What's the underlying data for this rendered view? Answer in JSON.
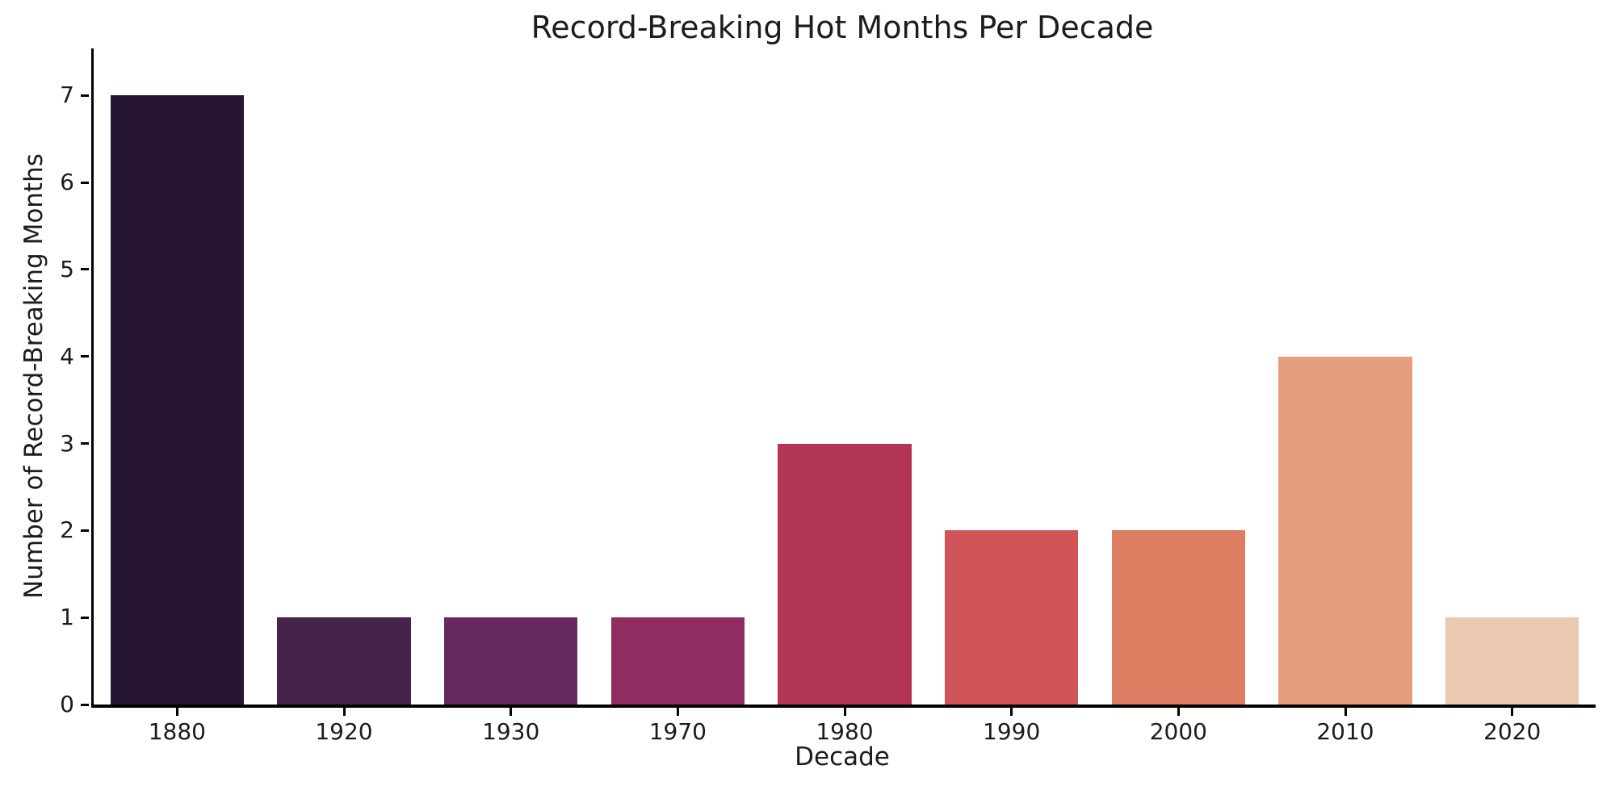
{
  "chart_data": {
    "type": "bar",
    "title": "Record-Breaking Hot Months Per Decade",
    "xlabel": "Decade",
    "ylabel": "Number of Record-Breaking Months",
    "categories": [
      "1880",
      "1920",
      "1930",
      "1970",
      "1980",
      "1990",
      "2000",
      "2010",
      "2020"
    ],
    "values": [
      7,
      1,
      1,
      1,
      3,
      2,
      2,
      4,
      1
    ],
    "bar_colors": [
      "#261533",
      "#45234a",
      "#682a5e",
      "#8f2c60",
      "#b23457",
      "#d15558",
      "#dd7e63",
      "#e49e7e",
      "#ebc8b1"
    ],
    "yticks": [
      0,
      1,
      2,
      3,
      4,
      5,
      6,
      7
    ],
    "ylim": [
      0,
      7.54
    ],
    "grid": false,
    "legend": null,
    "background": "#ffffff",
    "axis_color": "#000000",
    "text_color": "#1c1c1c"
  }
}
